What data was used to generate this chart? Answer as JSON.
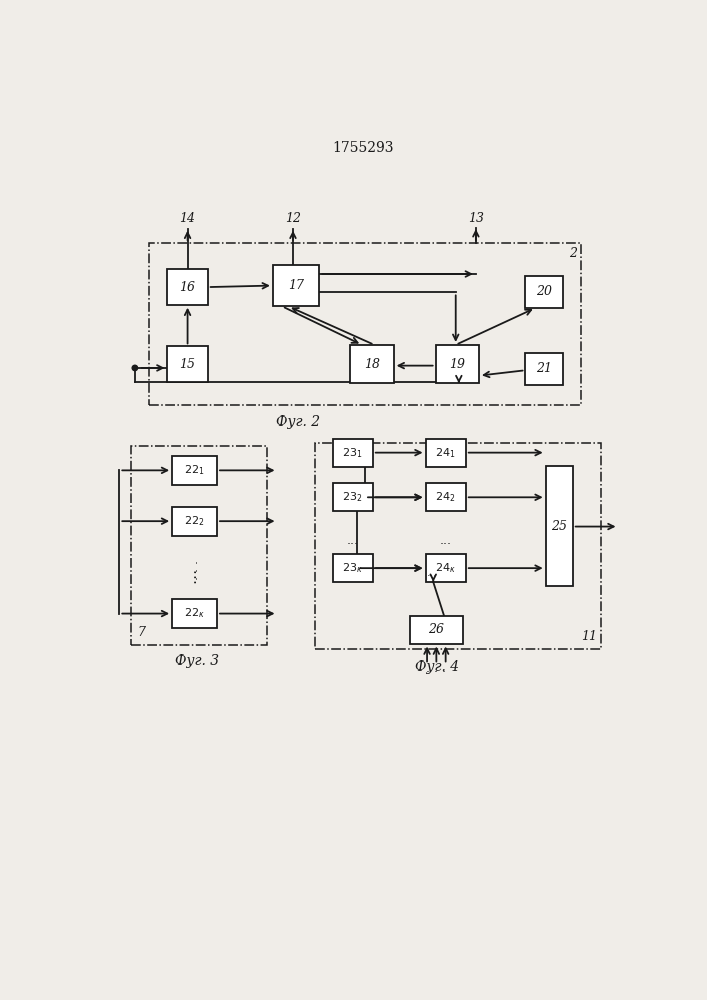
{
  "title": "1755293",
  "title_fontsize": 10,
  "fig2_label": "Фуг. 2",
  "fig3_label": "Фуг. 3",
  "fig4_label": "Фуг. 4",
  "bg_color": "#f0ede8",
  "box_color": "#ffffff",
  "line_color": "#1a1a1a",
  "label_color": "#1a1a1a"
}
